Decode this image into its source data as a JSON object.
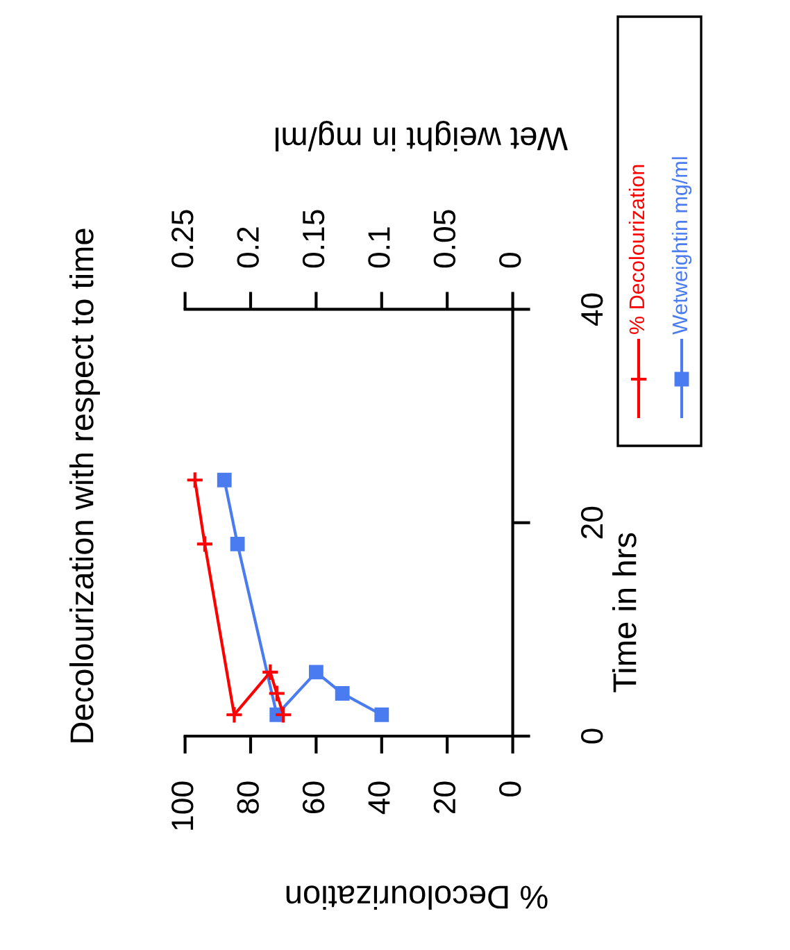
{
  "chart_data": {
    "type": "line",
    "title": "Decolourization with respect to time",
    "xlabel": "% Decolourization",
    "x2label": "Wet weight in mg/ml",
    "ylabel": "Time in hrs",
    "xlim": [
      100,
      0
    ],
    "xticks": [
      100,
      80,
      60,
      40,
      20,
      0
    ],
    "x2lim": [
      0.25,
      0
    ],
    "x2ticks": [
      0.25,
      0.2,
      0.15,
      0.1,
      0.05,
      0
    ],
    "ylim": [
      0,
      40
    ],
    "yticks": [
      0,
      20,
      40
    ],
    "grid": false,
    "legend": "top right",
    "line_style": "solid",
    "series": [
      {
        "name": "% Decolourization",
        "color": "#ff0000",
        "marker": "cross",
        "x": [
          97,
          94,
          85,
          74,
          72,
          70
        ],
        "values": [
          24,
          18,
          2,
          6,
          4,
          2
        ]
      },
      {
        "name": "Wetweightin mg/ml",
        "color": "#4a7cf0",
        "marker": "square",
        "axis": "x2",
        "x": [
          0.22,
          0.21,
          0.18,
          0.15,
          0.13,
          0.1
        ],
        "values": [
          24,
          18,
          2,
          6,
          4,
          2
        ]
      }
    ]
  }
}
